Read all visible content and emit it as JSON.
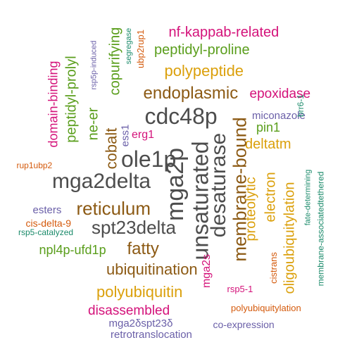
{
  "palette": {
    "gray": "#4d4d4d",
    "brown": "#8c5a14",
    "gold": "#dba00c",
    "green": "#5a9e1c",
    "magenta": "#d4127a",
    "purple": "#6a5fa8",
    "orange": "#d45a0c",
    "teal": "#1a8a6a"
  },
  "words": [
    {
      "text": "nf-kappab-related",
      "color": "magenta"
    },
    {
      "text": "peptidyl-proline",
      "color": "green"
    },
    {
      "text": "polypeptide",
      "color": "gold"
    },
    {
      "text": "endoplasmic",
      "color": "brown"
    },
    {
      "text": "epoxidase",
      "color": "magenta"
    },
    {
      "text": "cdc48p",
      "color": "gray"
    },
    {
      "text": "miconazole",
      "color": "purple"
    },
    {
      "text": "pin1",
      "color": "green"
    },
    {
      "text": "deltatm",
      "color": "gold"
    },
    {
      "text": "erg1",
      "color": "magenta"
    },
    {
      "text": "ole1p",
      "color": "gray"
    },
    {
      "text": "mga2delta",
      "color": "gray"
    },
    {
      "text": "reticulum",
      "color": "brown"
    },
    {
      "text": "spt23delta",
      "color": "gray"
    },
    {
      "text": "fatty",
      "color": "brown"
    },
    {
      "text": "npl4p-ufd1p",
      "color": "green"
    },
    {
      "text": "ubiquitination",
      "color": "brown"
    },
    {
      "text": "polyubiquitin",
      "color": "gold"
    },
    {
      "text": "disassembled",
      "color": "magenta"
    },
    {
      "text": "mga2δspt23δ",
      "color": "purple"
    },
    {
      "text": "retrotranslocation",
      "color": "purple"
    },
    {
      "text": "co-expression",
      "color": "purple"
    },
    {
      "text": "polyubiquitylation",
      "color": "orange"
    },
    {
      "text": "rsp5-1",
      "color": "magenta"
    },
    {
      "text": "esters",
      "color": "purple"
    },
    {
      "text": "cis-delta-9",
      "color": "orange"
    },
    {
      "text": "rsp5-catalyzed",
      "color": "teal"
    },
    {
      "text": "rup1ubp2",
      "color": "orange"
    },
    {
      "text": "domain-binding",
      "color": "magenta"
    },
    {
      "text": "peptidyl-prolyl",
      "color": "green"
    },
    {
      "text": "rsp5p-induced",
      "color": "purple"
    },
    {
      "text": "copurifying",
      "color": "green"
    },
    {
      "text": "segregase",
      "color": "teal"
    },
    {
      "text": "ubp2rup1",
      "color": "orange"
    },
    {
      "text": "ne-er",
      "color": "green"
    },
    {
      "text": "cobalt",
      "color": "brown"
    },
    {
      "text": "ess1",
      "color": "purple"
    },
    {
      "text": "mga2p",
      "color": "gray"
    },
    {
      "text": "unsaturated",
      "color": "gray"
    },
    {
      "text": "desaturase",
      "color": "gray"
    },
    {
      "text": "membrane-bound",
      "color": "brown"
    },
    {
      "text": "proteolytic",
      "color": "gold"
    },
    {
      "text": "electron",
      "color": "gold"
    },
    {
      "text": "oligoubiquitylation",
      "color": "gold"
    },
    {
      "text": "brr6-1",
      "color": "teal"
    },
    {
      "text": "cistrans",
      "color": "orange"
    },
    {
      "text": "fate-determining",
      "color": "teal"
    },
    {
      "text": "membrane-associatedtethered",
      "color": "teal"
    },
    {
      "text": "mga2s",
      "color": "magenta"
    }
  ]
}
